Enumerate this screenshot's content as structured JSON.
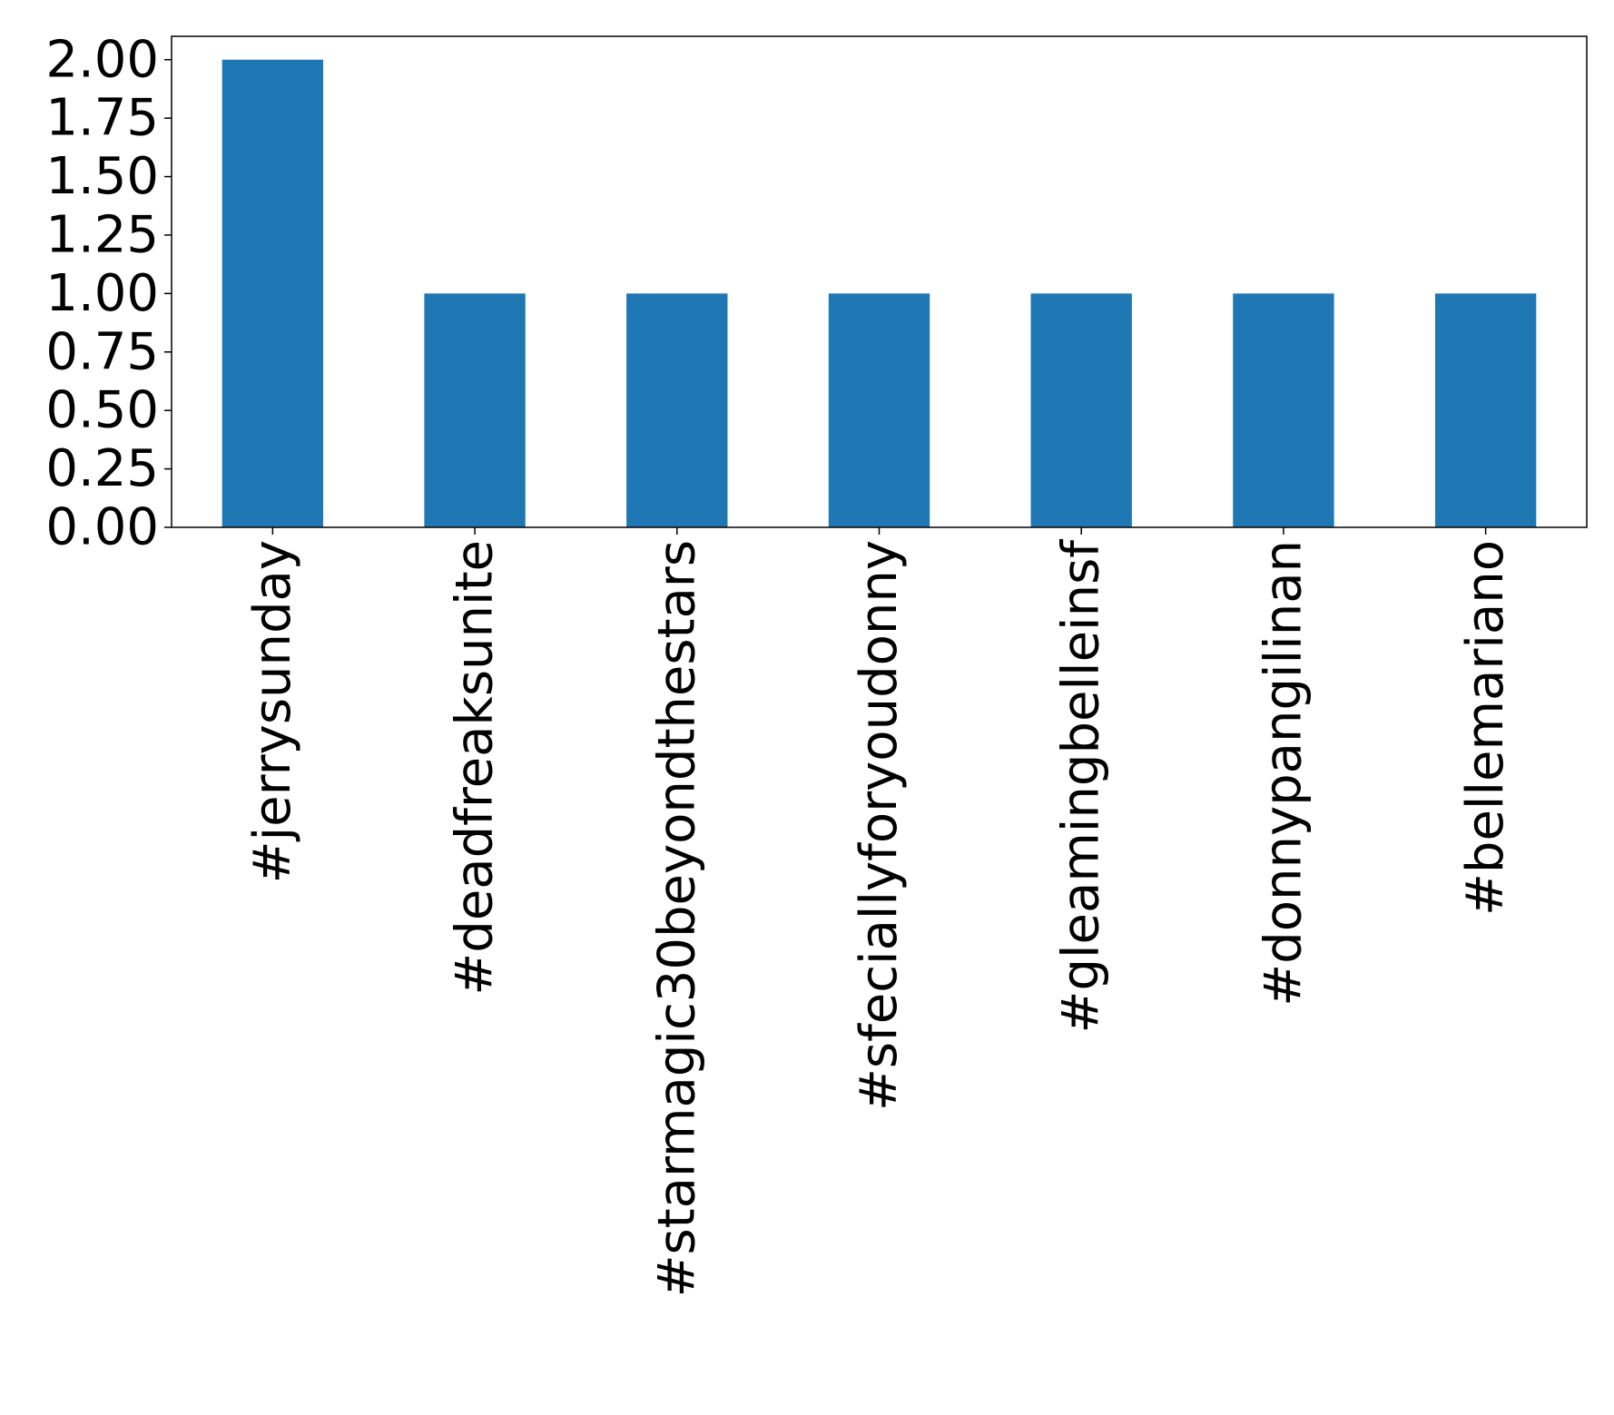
{
  "chart_data": {
    "type": "bar",
    "categories": [
      "#jerrysunday",
      "#deadfreaksunite",
      "#starmagic30beyondthestars",
      "#sfeciallyforyoudonny",
      "#gleamingbelleinsf",
      "#donnypangilinan",
      "#bellemariano"
    ],
    "values": [
      2,
      1,
      1,
      1,
      1,
      1,
      1
    ],
    "color": "#1f77b4",
    "ylim": [
      0,
      2.1
    ],
    "yticks": [
      {
        "value": 0,
        "label": "0.00"
      },
      {
        "value": 0.25,
        "label": "0.25"
      },
      {
        "value": 0.5,
        "label": "0.50"
      },
      {
        "value": 0.75,
        "label": "0.75"
      },
      {
        "value": 1,
        "label": "1.00"
      },
      {
        "value": 1.25,
        "label": "1.25"
      },
      {
        "value": 1.5,
        "label": "1.50"
      },
      {
        "value": 1.75,
        "label": "1.75"
      },
      {
        "value": 2,
        "label": "2.00"
      }
    ],
    "grid": false
  }
}
